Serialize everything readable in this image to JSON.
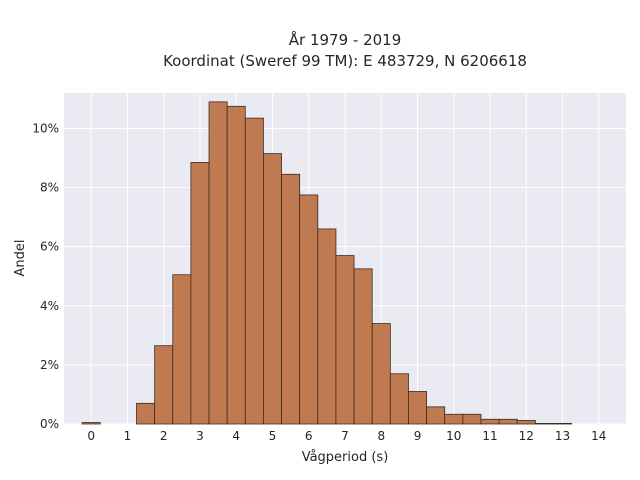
{
  "chart_data": {
    "type": "bar",
    "title_lines": [
      "År 1979 - 2019",
      "Koordinat (Sweref 99 TM): E 483729, N 6206618"
    ],
    "xlabel": "Vågperiod (s)",
    "ylabel": "Andel",
    "x_ticks": [
      "0",
      "1",
      "2",
      "3",
      "4",
      "5",
      "6",
      "7",
      "8",
      "9",
      "10",
      "11",
      "12",
      "13",
      "14"
    ],
    "y_ticks": [
      "0%",
      "2%",
      "4%",
      "6%",
      "8%",
      "10%"
    ],
    "xlim": [
      -0.75,
      14.75
    ],
    "ylim": [
      0,
      11.2
    ],
    "grid": true,
    "bin_width": 0.5,
    "bins": [
      {
        "x": 0.0,
        "value": 0.05
      },
      {
        "x": 0.5,
        "value": 0.0
      },
      {
        "x": 1.0,
        "value": 0.0
      },
      {
        "x": 1.5,
        "value": 0.7
      },
      {
        "x": 2.0,
        "value": 2.65
      },
      {
        "x": 2.5,
        "value": 5.05
      },
      {
        "x": 3.0,
        "value": 8.85
      },
      {
        "x": 3.5,
        "value": 10.9
      },
      {
        "x": 4.0,
        "value": 10.75
      },
      {
        "x": 4.5,
        "value": 10.35
      },
      {
        "x": 5.0,
        "value": 9.15
      },
      {
        "x": 5.5,
        "value": 8.45
      },
      {
        "x": 6.0,
        "value": 7.75
      },
      {
        "x": 6.5,
        "value": 6.6
      },
      {
        "x": 7.0,
        "value": 5.7
      },
      {
        "x": 7.5,
        "value": 5.25
      },
      {
        "x": 8.0,
        "value": 3.4
      },
      {
        "x": 8.5,
        "value": 1.7
      },
      {
        "x": 9.0,
        "value": 1.1
      },
      {
        "x": 9.5,
        "value": 0.58
      },
      {
        "x": 10.0,
        "value": 0.33
      },
      {
        "x": 10.5,
        "value": 0.33
      },
      {
        "x": 11.0,
        "value": 0.16
      },
      {
        "x": 11.5,
        "value": 0.16
      },
      {
        "x": 12.0,
        "value": 0.12
      },
      {
        "x": 12.5,
        "value": 0.02
      },
      {
        "x": 13.0,
        "value": 0.02
      }
    ],
    "colors": {
      "bar_fill": "#c07a52",
      "bar_stroke": "#3d2a1e",
      "plot_background": "#eaeaf2",
      "grid": "#ffffff",
      "text": "#262626"
    }
  }
}
